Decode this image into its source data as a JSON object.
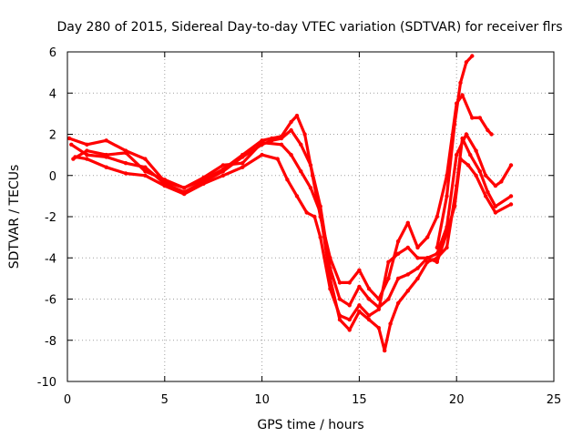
{
  "chart_data": {
    "type": "line",
    "title": "Day 280 of 2015, Sidereal Day-to-day VTEC variation (SDTVAR) for receiver flrs",
    "xlabel": "GPS time / hours",
    "ylabel": "SDTVAR / TECUs",
    "xlim": [
      0,
      25
    ],
    "ylim": [
      -10,
      6
    ],
    "xticks": [
      0,
      5,
      10,
      15,
      20,
      25
    ],
    "yticks": [
      -10,
      -8,
      -6,
      -4,
      -2,
      0,
      2,
      4,
      6
    ],
    "xtick_labels": [
      "0",
      "5",
      "10",
      "15",
      "20",
      "25"
    ],
    "ytick_labels": [
      "-10",
      "-8",
      "-6",
      "-4",
      "-2",
      "0",
      "2",
      "4",
      "6"
    ],
    "grid": true,
    "color": "#ff0000",
    "series": [
      {
        "points": [
          [
            0.1,
            1.8
          ],
          [
            1,
            1.5
          ],
          [
            2,
            1.7
          ],
          [
            3,
            1.2
          ],
          [
            4,
            0.8
          ],
          [
            5,
            -0.3
          ],
          [
            6,
            -0.6
          ],
          [
            7,
            -0.2
          ],
          [
            8,
            0.3
          ],
          [
            9,
            1.0
          ],
          [
            10,
            1.7
          ],
          [
            10.5,
            1.8
          ],
          [
            11,
            1.9
          ],
          [
            11.5,
            2.6
          ],
          [
            11.8,
            2.9
          ],
          [
            12.2,
            2.0
          ],
          [
            12.6,
            0.0
          ],
          [
            13,
            -2.0
          ],
          [
            13.5,
            -4.0
          ],
          [
            14,
            -5.2
          ],
          [
            14.5,
            -5.2
          ],
          [
            15,
            -4.6
          ],
          [
            15.5,
            -5.5
          ],
          [
            16,
            -6.0
          ],
          [
            16.5,
            -5.0
          ],
          [
            17,
            -3.2
          ],
          [
            17.5,
            -2.3
          ],
          [
            18,
            -3.5
          ],
          [
            18.5,
            -3.0
          ],
          [
            19,
            -2.0
          ],
          [
            19.5,
            0.0
          ],
          [
            20,
            3.5
          ],
          [
            20.3,
            3.9
          ],
          [
            20.8,
            2.8
          ],
          [
            21.2,
            2.8
          ],
          [
            21.6,
            2.2
          ],
          [
            21.8,
            2.0
          ]
        ]
      },
      {
        "points": [
          [
            0.2,
            1.5
          ],
          [
            1,
            1.0
          ],
          [
            2,
            0.9
          ],
          [
            3,
            0.6
          ],
          [
            4,
            0.4
          ],
          [
            5,
            -0.4
          ],
          [
            6,
            -0.8
          ],
          [
            7,
            -0.3
          ],
          [
            8,
            0.2
          ],
          [
            9,
            0.9
          ],
          [
            10,
            1.5
          ],
          [
            10.5,
            1.7
          ],
          [
            11,
            1.8
          ],
          [
            11.5,
            2.2
          ],
          [
            12,
            1.5
          ],
          [
            12.5,
            0.5
          ],
          [
            13,
            -1.5
          ],
          [
            13.5,
            -4.5
          ],
          [
            14,
            -6.0
          ],
          [
            14.5,
            -6.3
          ],
          [
            15,
            -5.4
          ],
          [
            15.5,
            -6.0
          ],
          [
            16,
            -6.4
          ],
          [
            16.5,
            -6.0
          ],
          [
            17,
            -5.0
          ],
          [
            17.5,
            -4.8
          ],
          [
            18,
            -4.5
          ],
          [
            18.5,
            -4.0
          ],
          [
            19,
            -3.8
          ],
          [
            19.5,
            -2.5
          ],
          [
            20,
            1.0
          ],
          [
            20.5,
            2.0
          ],
          [
            21,
            1.2
          ],
          [
            21.5,
            0.0
          ],
          [
            22,
            -0.5
          ],
          [
            22.3,
            -0.3
          ],
          [
            22.8,
            0.5
          ]
        ]
      },
      {
        "points": [
          [
            0.3,
            0.8
          ],
          [
            1,
            1.2
          ],
          [
            2,
            1.0
          ],
          [
            3,
            1.1
          ],
          [
            4,
            0.2
          ],
          [
            5,
            -0.2
          ],
          [
            6,
            -0.6
          ],
          [
            7,
            -0.1
          ],
          [
            8,
            0.5
          ],
          [
            9,
            0.6
          ],
          [
            10,
            1.6
          ],
          [
            11,
            1.5
          ],
          [
            11.5,
            1.0
          ],
          [
            12,
            0.2
          ],
          [
            12.5,
            -0.6
          ],
          [
            13,
            -1.8
          ],
          [
            13.5,
            -5.0
          ],
          [
            14,
            -7.0
          ],
          [
            14.5,
            -7.5
          ],
          [
            15,
            -6.6
          ],
          [
            15.5,
            -7.0
          ],
          [
            16,
            -7.4
          ],
          [
            16.3,
            -8.5
          ],
          [
            16.6,
            -7.2
          ],
          [
            17,
            -6.2
          ],
          [
            17.5,
            -5.6
          ],
          [
            18,
            -5.0
          ],
          [
            18.5,
            -4.2
          ],
          [
            19,
            -4.0
          ],
          [
            19.5,
            -3.5
          ],
          [
            20,
            -0.5
          ],
          [
            20.3,
            1.8
          ],
          [
            20.7,
            1.0
          ],
          [
            21.2,
            0.2
          ],
          [
            21.6,
            -0.8
          ],
          [
            22,
            -1.5
          ],
          [
            22.8,
            -1.0
          ]
        ]
      },
      {
        "points": [
          [
            0.4,
            0.9
          ],
          [
            1,
            0.8
          ],
          [
            2,
            0.4
          ],
          [
            3,
            0.1
          ],
          [
            4,
            0.0
          ],
          [
            5,
            -0.5
          ],
          [
            6,
            -0.9
          ],
          [
            7,
            -0.4
          ],
          [
            8,
            0.0
          ],
          [
            9,
            0.4
          ],
          [
            10,
            1.0
          ],
          [
            10.8,
            0.8
          ],
          [
            11.3,
            -0.2
          ],
          [
            11.8,
            -1.0
          ],
          [
            12.3,
            -1.8
          ],
          [
            12.7,
            -2.0
          ],
          [
            13,
            -3.0
          ],
          [
            13.5,
            -5.5
          ],
          [
            14,
            -6.8
          ],
          [
            14.5,
            -7.0
          ],
          [
            15,
            -6.3
          ],
          [
            15.5,
            -6.8
          ],
          [
            16,
            -6.5
          ],
          [
            16.5,
            -4.2
          ],
          [
            17,
            -3.8
          ],
          [
            17.5,
            -3.5
          ],
          [
            18,
            -4.0
          ],
          [
            18.5,
            -4.0
          ],
          [
            19,
            -4.2
          ],
          [
            19.5,
            -2.8
          ],
          [
            19.9,
            -1.5
          ],
          [
            20.2,
            0.8
          ],
          [
            20.6,
            0.5
          ],
          [
            21,
            0.0
          ],
          [
            21.5,
            -1.0
          ],
          [
            22,
            -1.8
          ],
          [
            22.8,
            -1.4
          ]
        ]
      }
    ],
    "spike": {
      "points": [
        [
          19.0,
          -3.5
        ],
        [
          19.5,
          -1.0
        ],
        [
          19.9,
          2.5
        ],
        [
          20.2,
          4.5
        ],
        [
          20.5,
          5.5
        ],
        [
          20.8,
          5.8
        ]
      ]
    }
  }
}
